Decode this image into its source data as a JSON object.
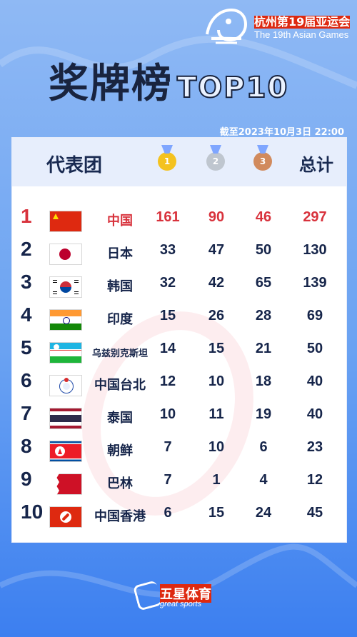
{
  "event": {
    "name_cn": "杭州第19届亚运会",
    "name_en": "The 19th Asian Games"
  },
  "title": {
    "main": "奖牌榜",
    "suffix": "TOP10"
  },
  "date": "截至2023年10月3日 22:00",
  "table": {
    "header_label": "代表团",
    "total_label": "总计",
    "medals": {
      "gold": "1",
      "silver": "2",
      "bronze": "3"
    },
    "rows": [
      {
        "rank": "1",
        "country": "中国",
        "gold": "161",
        "silver": "90",
        "bronze": "46",
        "total": "297",
        "flag": "china-flag"
      },
      {
        "rank": "2",
        "country": "日本",
        "gold": "33",
        "silver": "47",
        "bronze": "50",
        "total": "130",
        "flag": "japan-flag"
      },
      {
        "rank": "3",
        "country": "韩国",
        "gold": "32",
        "silver": "42",
        "bronze": "65",
        "total": "139",
        "flag": "korea-flag"
      },
      {
        "rank": "4",
        "country": "印度",
        "gold": "15",
        "silver": "26",
        "bronze": "28",
        "total": "69",
        "flag": "india-flag"
      },
      {
        "rank": "5",
        "country": "乌兹别克斯坦",
        "gold": "14",
        "silver": "15",
        "bronze": "21",
        "total": "50",
        "flag": "uzbekistan-flag"
      },
      {
        "rank": "6",
        "country": "中国台北",
        "gold": "12",
        "silver": "10",
        "bronze": "18",
        "total": "40",
        "flag": "chinese-taipei-flag"
      },
      {
        "rank": "7",
        "country": "泰国",
        "gold": "10",
        "silver": "11",
        "bronze": "19",
        "total": "40",
        "flag": "thailand-flag"
      },
      {
        "rank": "8",
        "country": "朝鲜",
        "gold": "7",
        "silver": "10",
        "bronze": "6",
        "total": "23",
        "flag": "north-korea-flag"
      },
      {
        "rank": "9",
        "country": "巴林",
        "gold": "7",
        "silver": "1",
        "bronze": "4",
        "total": "12",
        "flag": "bahrain-flag"
      },
      {
        "rank": "10",
        "country": "中国香港",
        "gold": "6",
        "silver": "15",
        "bronze": "24",
        "total": "45",
        "flag": "hong-kong-flag"
      }
    ]
  },
  "footer": {
    "brand_cn": "五星体育",
    "brand_en": "great sports"
  }
}
